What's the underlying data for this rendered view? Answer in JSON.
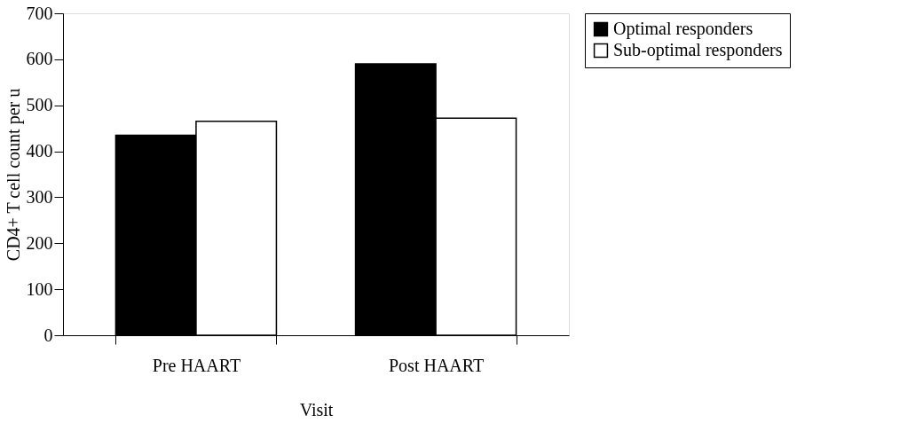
{
  "chart_data": {
    "type": "bar",
    "xlabel": "Visit",
    "ylabel": "CD4+ T cell count per u",
    "categories": [
      "Pre HAART",
      "Post HAART"
    ],
    "series": [
      {
        "name": "Optimal responders",
        "color": "#000000",
        "values": [
          435,
          590
        ]
      },
      {
        "name": "Sub-optimal responders",
        "color": "#ffffff",
        "values": [
          465,
          472
        ]
      }
    ],
    "ylim": [
      0,
      700
    ],
    "yticks": [
      0,
      100,
      200,
      300,
      400,
      500,
      600,
      700
    ],
    "grid": false,
    "legend": "right"
  }
}
